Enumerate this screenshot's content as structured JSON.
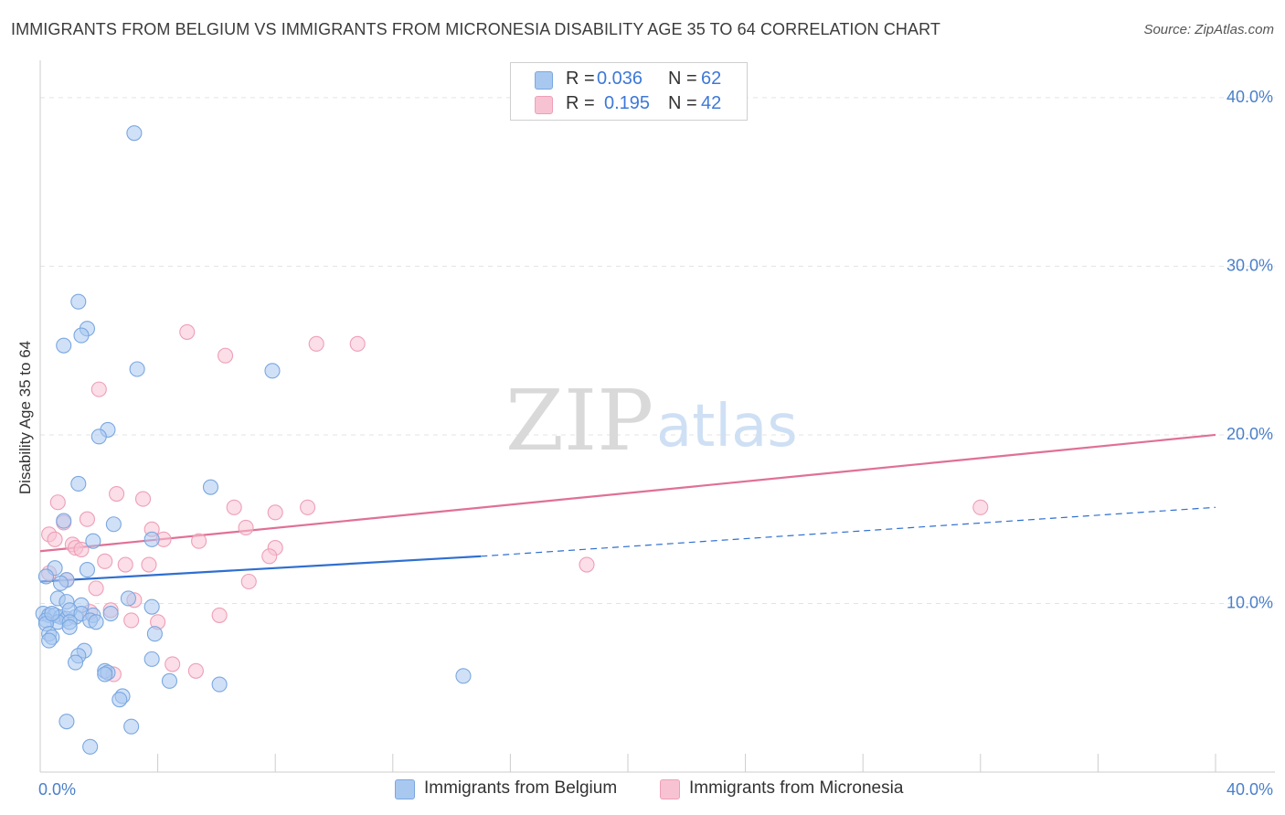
{
  "title": "IMMIGRANTS FROM BELGIUM VS IMMIGRANTS FROM MICRONESIA DISABILITY AGE 35 TO 64 CORRELATION CHART",
  "source": "Source: ZipAtlas.com",
  "watermark": {
    "zip": "ZIP",
    "atlas": "atlas"
  },
  "legend": {
    "r_label": "R =",
    "n_label": "N =",
    "rows": [
      {
        "r": "0.036",
        "n": "62"
      },
      {
        "r": "0.195",
        "n": "42"
      }
    ]
  },
  "colors": {
    "belgium_fill": "#a9c8f0",
    "belgium_stroke": "#7aa7e0",
    "belgium_line": "#2f6fd0",
    "micronesia_fill": "#f7c3d3",
    "micronesia_stroke": "#ee9fb7",
    "micronesia_line": "#e07095",
    "tick_text": "#4a7fc9",
    "grid": "#e3e3e3"
  },
  "chart_data": {
    "type": "scatter",
    "title": "IMMIGRANTS FROM BELGIUM VS IMMIGRANTS FROM MICRONESIA DISABILITY AGE 35 TO 64 CORRELATION CHART",
    "ylabel": "Disability Age 35 to 64",
    "xlabel": "",
    "xlim": [
      0,
      40
    ],
    "ylim": [
      0,
      42
    ],
    "x_tick_labels": [
      {
        "value": 0,
        "label": "0.0%"
      },
      {
        "value": 40,
        "label": "40.0%"
      }
    ],
    "y_tick_labels": [
      {
        "value": 10,
        "label": "10.0%"
      },
      {
        "value": 20,
        "label": "20.0%"
      },
      {
        "value": 30,
        "label": "30.0%"
      },
      {
        "value": 40,
        "label": "40.0%"
      }
    ],
    "grid_y": [
      10,
      20,
      30,
      40
    ],
    "series": [
      {
        "name": "Immigrants from Belgium",
        "points": [
          [
            3.2,
            37.9
          ],
          [
            1.3,
            27.9
          ],
          [
            1.6,
            26.3
          ],
          [
            1.4,
            25.9
          ],
          [
            0.8,
            25.3
          ],
          [
            3.3,
            23.9
          ],
          [
            7.9,
            23.8
          ],
          [
            2.3,
            20.3
          ],
          [
            2.0,
            19.9
          ],
          [
            1.3,
            17.1
          ],
          [
            5.8,
            16.9
          ],
          [
            0.8,
            14.9
          ],
          [
            2.5,
            14.7
          ],
          [
            1.8,
            13.7
          ],
          [
            3.8,
            13.8
          ],
          [
            0.5,
            12.1
          ],
          [
            1.6,
            12.0
          ],
          [
            0.2,
            11.6
          ],
          [
            0.9,
            11.4
          ],
          [
            0.7,
            11.2
          ],
          [
            0.6,
            10.3
          ],
          [
            0.9,
            10.1
          ],
          [
            3.0,
            10.3
          ],
          [
            3.8,
            9.8
          ],
          [
            1.4,
            9.9
          ],
          [
            0.1,
            9.4
          ],
          [
            0.3,
            9.3
          ],
          [
            0.5,
            9.3
          ],
          [
            0.7,
            9.2
          ],
          [
            0.9,
            9.1
          ],
          [
            1.2,
            9.2
          ],
          [
            1.0,
            9.6
          ],
          [
            1.4,
            9.4
          ],
          [
            1.8,
            9.3
          ],
          [
            2.4,
            9.4
          ],
          [
            0.2,
            9.0
          ],
          [
            0.6,
            8.9
          ],
          [
            1.0,
            8.9
          ],
          [
            1.7,
            9.0
          ],
          [
            1.9,
            8.9
          ],
          [
            0.2,
            8.8
          ],
          [
            1.0,
            8.6
          ],
          [
            0.3,
            8.2
          ],
          [
            0.4,
            8.0
          ],
          [
            3.9,
            8.2
          ],
          [
            0.3,
            7.8
          ],
          [
            1.5,
            7.2
          ],
          [
            1.3,
            6.9
          ],
          [
            1.2,
            6.5
          ],
          [
            3.8,
            6.7
          ],
          [
            2.2,
            6.0
          ],
          [
            2.3,
            5.9
          ],
          [
            4.4,
            5.4
          ],
          [
            6.1,
            5.2
          ],
          [
            14.4,
            5.7
          ],
          [
            2.8,
            4.5
          ],
          [
            2.7,
            4.3
          ],
          [
            0.9,
            3.0
          ],
          [
            3.1,
            2.7
          ],
          [
            1.7,
            1.5
          ],
          [
            0.4,
            9.4
          ],
          [
            2.2,
            5.8
          ]
        ],
        "trend": {
          "x1": 0,
          "y1": 11.3,
          "x2": 15,
          "y2": 12.8,
          "dashed_to": {
            "x": 40,
            "y": 15.7
          }
        }
      },
      {
        "name": "Immigrants from Micronesia",
        "points": [
          [
            5.0,
            26.1
          ],
          [
            6.3,
            24.7
          ],
          [
            9.4,
            25.4
          ],
          [
            10.8,
            25.4
          ],
          [
            2.0,
            22.7
          ],
          [
            2.6,
            16.5
          ],
          [
            3.5,
            16.2
          ],
          [
            0.6,
            16.0
          ],
          [
            6.6,
            15.7
          ],
          [
            9.1,
            15.7
          ],
          [
            8.0,
            15.4
          ],
          [
            1.6,
            15.0
          ],
          [
            0.8,
            14.8
          ],
          [
            3.8,
            14.4
          ],
          [
            7.0,
            14.5
          ],
          [
            0.3,
            14.1
          ],
          [
            4.2,
            13.8
          ],
          [
            0.5,
            13.8
          ],
          [
            5.4,
            13.7
          ],
          [
            1.1,
            13.5
          ],
          [
            1.2,
            13.3
          ],
          [
            1.4,
            13.2
          ],
          [
            8.0,
            13.3
          ],
          [
            7.8,
            12.8
          ],
          [
            2.2,
            12.5
          ],
          [
            2.9,
            12.3
          ],
          [
            3.7,
            12.3
          ],
          [
            18.6,
            12.3
          ],
          [
            0.3,
            11.8
          ],
          [
            0.9,
            11.4
          ],
          [
            7.1,
            11.3
          ],
          [
            1.9,
            10.9
          ],
          [
            3.2,
            10.2
          ],
          [
            2.4,
            9.6
          ],
          [
            6.1,
            9.3
          ],
          [
            3.1,
            9.0
          ],
          [
            4.0,
            8.9
          ],
          [
            4.5,
            6.4
          ],
          [
            5.3,
            6.0
          ],
          [
            2.5,
            5.8
          ],
          [
            32.0,
            15.7
          ],
          [
            1.7,
            9.5
          ]
        ],
        "trend": {
          "x1": 0,
          "y1": 13.1,
          "x2": 40,
          "y2": 20.0
        }
      }
    ]
  },
  "bottom_legend": [
    {
      "label": "Immigrants from Belgium"
    },
    {
      "label": "Immigrants from Micronesia"
    }
  ]
}
